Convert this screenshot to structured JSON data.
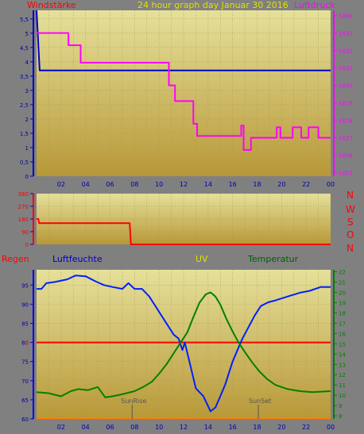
{
  "header": {
    "left_label": "Windstärke",
    "title": "24 hour graph day   Januar 30 2016",
    "right_label": "Luftdruck"
  },
  "middle": {
    "compass": [
      "N",
      "W",
      "S",
      "O",
      "N"
    ]
  },
  "bottom_header": {
    "regen": "Regen",
    "luftfeuchte": "Luftfeuchte",
    "uv": "UV",
    "temperatur": "Temperatur"
  },
  "markers": {
    "sunrise": "SunRise",
    "sunset": "SunSet"
  },
  "colors": {
    "wind": "#0000CC",
    "pressure": "#FF00FF",
    "direction": "#FF0000",
    "humidity": "#0020FF",
    "temperature": "#008000",
    "rain": "#FF0000",
    "uv_label": "#E0E000",
    "title": "#E0E000",
    "plot_top": "#E5E09A",
    "plot_bottom": "#B89838"
  },
  "chart_data": [
    {
      "id": "wind_pressure",
      "type": "line",
      "x_ticks": [
        "02",
        "04",
        "06",
        "08",
        "10",
        "12",
        "14",
        "16",
        "18",
        "20",
        "22",
        "00"
      ],
      "xlim": [
        0,
        24
      ],
      "y_left": {
        "ticks": [
          "0",
          "0,5",
          "1",
          "1,5",
          "2",
          "2,5",
          "3",
          "3,5",
          "4",
          "4,5",
          "5",
          "5,5"
        ],
        "ylim": [
          0,
          5.8
        ]
      },
      "y_right": {
        "ticks": [
          "1025",
          "1026",
          "1027",
          "1028",
          "1029",
          "1030",
          "1031",
          "1032",
          "1033",
          "1034"
        ],
        "ylim": [
          1024.8,
          1034.3
        ]
      },
      "series": [
        {
          "name": "Windstärke",
          "axis": "left",
          "color": "#0000CC",
          "points": [
            [
              0,
              5.8
            ],
            [
              0.1,
              5.0
            ],
            [
              0.25,
              3.7
            ],
            [
              24,
              3.7
            ]
          ]
        },
        {
          "name": "Luftdruck",
          "axis": "right",
          "color": "#FF00FF",
          "points": [
            [
              0,
              1033.0
            ],
            [
              2.6,
              1033.0
            ],
            [
              2.6,
              1032.3
            ],
            [
              3.6,
              1032.3
            ],
            [
              3.6,
              1031.3
            ],
            [
              10.8,
              1031.3
            ],
            [
              10.8,
              1030.0
            ],
            [
              11.3,
              1030.0
            ],
            [
              11.3,
              1029.1
            ],
            [
              12.8,
              1029.1
            ],
            [
              12.8,
              1027.8
            ],
            [
              13.1,
              1027.8
            ],
            [
              13.1,
              1027.1
            ],
            [
              16.7,
              1027.1
            ],
            [
              16.7,
              1027.7
            ],
            [
              16.9,
              1027.7
            ],
            [
              16.9,
              1026.3
            ],
            [
              17.5,
              1026.3
            ],
            [
              17.5,
              1027.0
            ],
            [
              19.6,
              1027.0
            ],
            [
              19.6,
              1027.6
            ],
            [
              19.9,
              1027.6
            ],
            [
              19.9,
              1027.0
            ],
            [
              20.9,
              1027.0
            ],
            [
              20.9,
              1027.6
            ],
            [
              21.6,
              1027.6
            ],
            [
              21.6,
              1027.0
            ],
            [
              22.2,
              1027.0
            ],
            [
              22.2,
              1027.6
            ],
            [
              23.0,
              1027.6
            ],
            [
              23.0,
              1027.0
            ],
            [
              24,
              1027.0
            ]
          ]
        }
      ]
    },
    {
      "id": "wind_direction",
      "type": "line",
      "xlim": [
        0,
        24
      ],
      "y_left": {
        "ticks": [
          "0",
          "90",
          "180",
          "270",
          "360"
        ],
        "ylim": [
          0,
          360
        ]
      },
      "series": [
        {
          "name": "Windrichtung",
          "axis": "left",
          "color": "#FF0000",
          "points": [
            [
              0,
              180
            ],
            [
              0.15,
              180
            ],
            [
              0.2,
              150
            ],
            [
              7.6,
              150
            ],
            [
              7.7,
              0
            ],
            [
              24,
              0
            ]
          ]
        }
      ]
    },
    {
      "id": "humidity_temperature",
      "type": "line",
      "x_ticks": [
        "02",
        "04",
        "06",
        "08",
        "10",
        "12",
        "14",
        "16",
        "18",
        "20",
        "22",
        "00"
      ],
      "xlim": [
        0,
        24
      ],
      "y_left": {
        "ticks": [
          "60",
          "65",
          "70",
          "75",
          "80",
          "85",
          "90",
          "95"
        ],
        "ylim": [
          60,
          99
        ]
      },
      "y_right": {
        "ticks": [
          "8",
          "9",
          "10",
          "11",
          "12",
          "13",
          "14",
          "15",
          "16",
          "17",
          "18",
          "19",
          "20",
          "21",
          "22"
        ],
        "ylim": [
          7.7,
          22.2
        ]
      },
      "rain_marker": {
        "label": "0",
        "value": 0
      },
      "series": [
        {
          "name": "Luftfeuchte",
          "axis": "left",
          "color": "#0020FF",
          "points": [
            [
              0,
              94.0
            ],
            [
              0.4,
              94.0
            ],
            [
              0.8,
              95.5
            ],
            [
              1.5,
              95.8
            ],
            [
              2.5,
              96.5
            ],
            [
              3.2,
              97.5
            ],
            [
              4.0,
              97.3
            ],
            [
              4.8,
              96.0
            ],
            [
              5.5,
              95.0
            ],
            [
              6.2,
              94.5
            ],
            [
              7.0,
              94.0
            ],
            [
              7.5,
              95.5
            ],
            [
              8.0,
              94.0
            ],
            [
              8.6,
              94.0
            ],
            [
              9.2,
              92.0
            ],
            [
              9.8,
              89.0
            ],
            [
              10.4,
              86.0
            ],
            [
              10.8,
              84.0
            ],
            [
              11.2,
              82.0
            ],
            [
              11.6,
              81.0
            ],
            [
              11.9,
              78.0
            ],
            [
              12.1,
              80.0
            ],
            [
              12.4,
              76.0
            ],
            [
              12.7,
              72.0
            ],
            [
              13.0,
              68.0
            ],
            [
              13.3,
              67.0
            ],
            [
              13.6,
              66.0
            ],
            [
              13.9,
              64.0
            ],
            [
              14.2,
              62.0
            ],
            [
              14.6,
              63.0
            ],
            [
              15.0,
              66.0
            ],
            [
              15.4,
              69.0
            ],
            [
              15.7,
              72.0
            ],
            [
              16.0,
              75.0
            ],
            [
              16.4,
              78.0
            ],
            [
              16.8,
              81.0
            ],
            [
              17.3,
              84.0
            ],
            [
              17.8,
              87.0
            ],
            [
              18.3,
              89.5
            ],
            [
              18.9,
              90.5
            ],
            [
              19.5,
              91.0
            ],
            [
              20.5,
              92.0
            ],
            [
              21.5,
              93.0
            ],
            [
              22.3,
              93.5
            ],
            [
              23.2,
              94.5
            ],
            [
              24,
              94.5
            ]
          ]
        },
        {
          "name": "Temperatur",
          "axis": "right",
          "color": "#008000",
          "points": [
            [
              0,
              10.3
            ],
            [
              1.0,
              10.2
            ],
            [
              2.0,
              9.9
            ],
            [
              2.8,
              10.4
            ],
            [
              3.4,
              10.6
            ],
            [
              4.2,
              10.5
            ],
            [
              5.0,
              10.8
            ],
            [
              5.6,
              9.8
            ],
            [
              6.2,
              9.9
            ],
            [
              7.0,
              10.1
            ],
            [
              8.0,
              10.4
            ],
            [
              8.7,
              10.8
            ],
            [
              9.4,
              11.3
            ],
            [
              10.0,
              12.1
            ],
            [
              10.6,
              13.0
            ],
            [
              11.2,
              14.1
            ],
            [
              11.8,
              15.2
            ],
            [
              12.3,
              16.1
            ],
            [
              12.8,
              17.6
            ],
            [
              13.3,
              19.0
            ],
            [
              13.8,
              19.8
            ],
            [
              14.2,
              20.0
            ],
            [
              14.6,
              19.6
            ],
            [
              15.0,
              18.8
            ],
            [
              15.5,
              17.4
            ],
            [
              16.0,
              16.2
            ],
            [
              16.5,
              15.1
            ],
            [
              17.0,
              14.2
            ],
            [
              17.6,
              13.2
            ],
            [
              18.2,
              12.3
            ],
            [
              18.8,
              11.6
            ],
            [
              19.5,
              11.0
            ],
            [
              20.5,
              10.6
            ],
            [
              21.5,
              10.4
            ],
            [
              22.5,
              10.3
            ],
            [
              24,
              10.4
            ]
          ]
        }
      ]
    }
  ]
}
